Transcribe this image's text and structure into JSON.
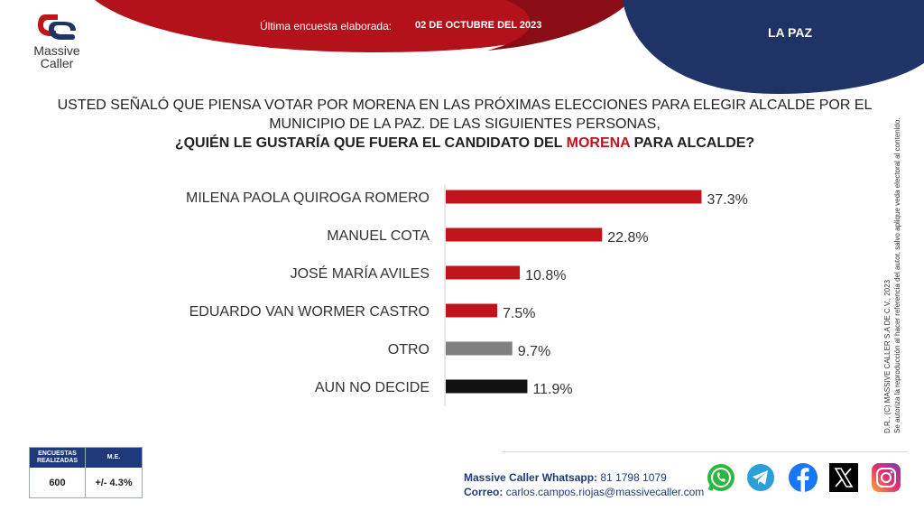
{
  "header": {
    "survey_label": "Última encuesta elaborada:",
    "survey_date": "02 DE OCTUBRE DEL 2023",
    "region": "LA PAZ",
    "colors": {
      "red": "#b3121b",
      "navy": "#1f3366"
    }
  },
  "logo": {
    "line1": "Massive",
    "line2": "Caller",
    "icon": "massive-caller-logo-icon"
  },
  "question": {
    "line1": "USTED SEÑALÓ QUE PIENSA VOTAR POR MORENA EN LAS PRÓXIMAS ELECCIONES PARA ELEGIR ALCALDE POR EL",
    "line2": "MUNICIPIO DE LA PAZ.  DE LAS SIGUIENTES PERSONAS,",
    "line3_pre": "¿QUIÉN LE GUSTARÍA QUE FUERA EL CANDIDATO DEL ",
    "line3_accent": "MORENA",
    "line3_post": " PARA ALCALDE?"
  },
  "chart_data": {
    "type": "bar",
    "orientation": "horizontal",
    "categories": [
      "MILENA PAOLA QUIROGA ROMERO",
      "MANUEL COTA",
      "JOSÉ MARÍA AVILES",
      "EDUARDO VAN WORMER CASTRO",
      "OTRO",
      "AUN NO DECIDE"
    ],
    "values": [
      37.3,
      22.8,
      10.8,
      7.5,
      9.7,
      11.9
    ],
    "value_labels": [
      "37.3%",
      "22.8%",
      "10.8%",
      "7.5%",
      "9.7%",
      "11.9%"
    ],
    "colors": [
      "#c0141c",
      "#c0141c",
      "#c0141c",
      "#c0141c",
      "#808080",
      "#111111"
    ],
    "xlim": [
      0,
      40
    ],
    "grid": false,
    "legend": "none"
  },
  "copyright": {
    "line1": "D.R., (C) MASSIVE CALLER S.A DE C.V., 2023",
    "line2": "Se autoriza la reproducción al hacer referencia del autor, salvo aplique veda electoral al contenido."
  },
  "stats": {
    "col1_header": "ENCUESTAS REALIZADAS",
    "col2_header": "M.E.",
    "col1_value": "600",
    "col2_value": "+/- 4.3%"
  },
  "contact": {
    "whatsapp_label": "Massive Caller Whatsapp:",
    "whatsapp_value": "81 1798 1079",
    "email_label": "Correo:",
    "email_value": "carlos.campos.riojas@massivecaller.com"
  },
  "social": [
    "whatsapp-icon",
    "telegram-icon",
    "facebook-icon",
    "x-icon",
    "instagram-icon"
  ]
}
